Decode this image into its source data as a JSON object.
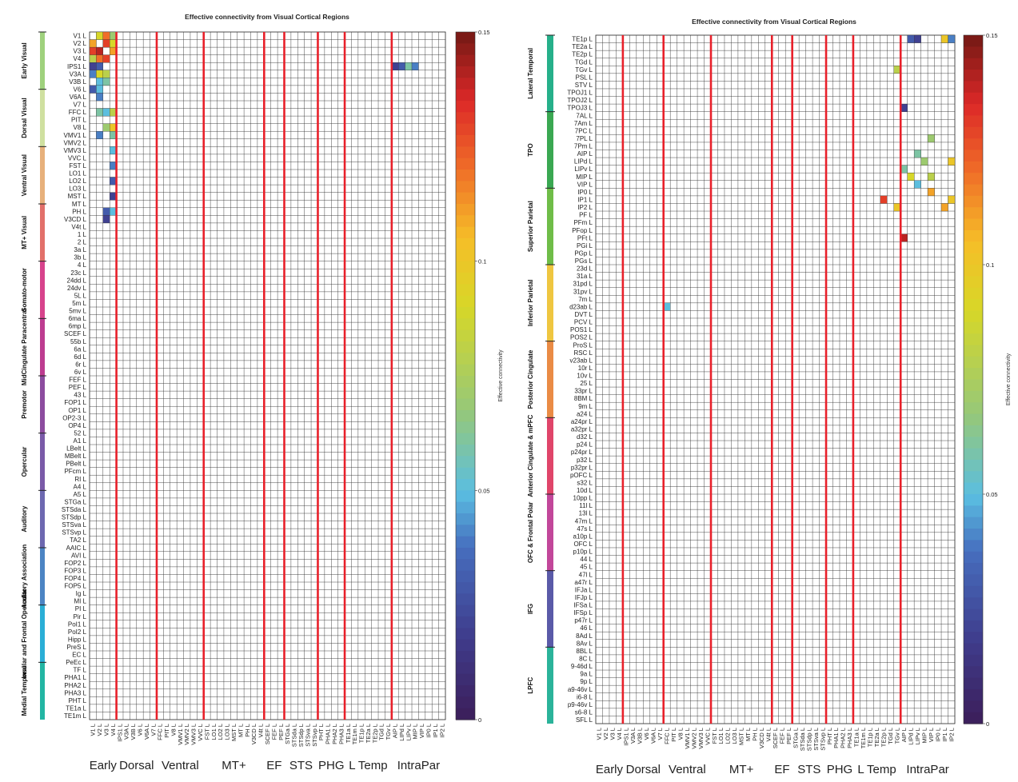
{
  "chart_data": [
    {
      "type": "heatmap",
      "title": "Effective connectivity from Visual Cortical Regions",
      "colorbar": {
        "label": "Effective connectivity",
        "range": [
          0,
          0.15
        ],
        "ticks": [
          "0",
          "0.05",
          "0.1",
          "0.15"
        ]
      },
      "x_groups": [
        "Early",
        "Dorsal",
        "Ventral",
        "MT+",
        "EF",
        "STS",
        "PHG",
        "L Temp",
        "IntraPar"
      ],
      "columns": [
        "V1 L",
        "V2 L",
        "V3 L",
        "V4 L",
        "IPS1 L",
        "V3A L",
        "V3B L",
        "V6 L",
        "V6A L",
        "V7 L",
        "FFC L",
        "PIT L",
        "V8 L",
        "VMV1 L",
        "VMV2 L",
        "VMV3 L",
        "VVC L",
        "FST L",
        "LO1 L",
        "LO2 L",
        "LO3 L",
        "MST L",
        "MT L",
        "PH L",
        "V3CD L",
        "V4t L",
        "SCEF L",
        "FEF L",
        "PEF L",
        "STGa L",
        "STSda L",
        "STSdp L",
        "STSva L",
        "STSvp L",
        "PHT L",
        "PHA1 L",
        "PHA2 L",
        "PHA3 L",
        "TE1a L",
        "TE1m L",
        "TE1p L",
        "TE2a L",
        "TE2p L",
        "TGd L",
        "TGv L",
        "AIP L",
        "LIPd L",
        "LIPv L",
        "MIP L",
        "VIP L",
        "IP0 L",
        "IP1 L",
        "IP2 L"
      ],
      "column_group_boundaries": [
        4,
        10,
        17,
        26,
        29,
        34,
        38,
        45
      ],
      "row_groups": [
        {
          "label": "Early Visual",
          "color": "#9fd17d"
        },
        {
          "label": "Dorsal Visual",
          "color": "#cfe0a0"
        },
        {
          "label": "Ventral Visual",
          "color": "#e7b07b"
        },
        {
          "label": "MT+ Visual",
          "color": "#e2706a"
        },
        {
          "label": "Somato-motor",
          "color": "#d7438c"
        },
        {
          "label": "MidCingulate Paracentral",
          "color": "#bd3c90"
        },
        {
          "label": "Premotor",
          "color": "#8c4c9f"
        },
        {
          "label": "Opercular",
          "color": "#7a5aa8"
        },
        {
          "label": "Auditory",
          "color": "#6d68b0"
        },
        {
          "label": "Auditory Association",
          "color": "#4c84c4"
        },
        {
          "label": "Insular and Frontal Opercular",
          "color": "#2aaed6"
        },
        {
          "label": "Medial Temporal",
          "color": "#22b5a3"
        }
      ],
      "rows": [
        "V1 L",
        "V2 L",
        "V3 L",
        "V4 L",
        "IPS1 L",
        "V3A L",
        "V3B L",
        "V6 L",
        "V6A L",
        "V7 L",
        "FFC L",
        "PIT L",
        "V8 L",
        "VMV1 L",
        "VMV2 L",
        "VMV3 L",
        "VVC L",
        "FST L",
        "LO1 L",
        "LO2 L",
        "LO3 L",
        "MST L",
        "MT L",
        "PH L",
        "V3CD L",
        "V4t L",
        "1 L",
        "2 L",
        "3a L",
        "3b L",
        "4 L",
        "23c L",
        "24dd L",
        "24dv L",
        "5L L",
        "5m L",
        "5mv L",
        "6ma L",
        "6mp L",
        "SCEF L",
        "55b L",
        "6a L",
        "6d L",
        "6r L",
        "6v L",
        "FEF L",
        "PEF L",
        "43 L",
        "FOP1 L",
        "OP1 L",
        "OP2-3 L",
        "OP4 L",
        "52 L",
        "A1 L",
        "LBelt L",
        "MBelt L",
        "PBelt L",
        "PFcm L",
        "RI L",
        "A4 L",
        "A5 L",
        "STGa L",
        "STSda L",
        "STSdp L",
        "STSva L",
        "STSvp L",
        "TA2 L",
        "AAIC L",
        "AVI L",
        "FOP2 L",
        "FOP3 L",
        "FOP4 L",
        "FOP5 L",
        "Ig L",
        "MI L",
        "PI L",
        "Pir L",
        "PoI1 L",
        "PoI2 L",
        "Hipp L",
        "PreS L",
        "EC L",
        "PeEc L",
        "TF L",
        "PHA1 L",
        "PHA2 L",
        "PHA3 L",
        "PHT L",
        "TE1a L",
        "TE1m L"
      ],
      "values_note": "sparse matrix; nonzero cells recorded as [row_index, column_index, value]",
      "cells": [
        [
          0,
          1,
          0.09
        ],
        [
          0,
          2,
          0.12
        ],
        [
          0,
          3,
          0.07
        ],
        [
          1,
          0,
          0.11
        ],
        [
          1,
          2,
          0.13
        ],
        [
          1,
          3,
          0.09
        ],
        [
          2,
          0,
          0.13
        ],
        [
          2,
          1,
          0.14
        ],
        [
          2,
          3,
          0.11
        ],
        [
          3,
          0,
          0.08
        ],
        [
          3,
          1,
          0.12
        ],
        [
          3,
          2,
          0.13
        ],
        [
          4,
          0,
          0.02
        ],
        [
          4,
          1,
          0.03
        ],
        [
          5,
          0,
          0.04
        ],
        [
          5,
          1,
          0.09
        ],
        [
          5,
          2,
          0.08
        ],
        [
          6,
          1,
          0.05
        ],
        [
          6,
          2,
          0.06
        ],
        [
          7,
          0,
          0.03
        ],
        [
          7,
          1,
          0.05
        ],
        [
          8,
          1,
          0.04
        ],
        [
          10,
          1,
          0.06
        ],
        [
          10,
          2,
          0.05
        ],
        [
          10,
          3,
          0.08
        ],
        [
          12,
          2,
          0.07
        ],
        [
          12,
          3,
          0.1
        ],
        [
          13,
          1,
          0.04
        ],
        [
          13,
          3,
          0.06
        ],
        [
          15,
          3,
          0.05
        ],
        [
          17,
          3,
          0.04
        ],
        [
          19,
          3,
          0.03
        ],
        [
          21,
          3,
          0.02
        ],
        [
          23,
          2,
          0.03
        ],
        [
          23,
          3,
          0.05
        ],
        [
          24,
          2,
          0.02
        ],
        [
          4,
          45,
          0.02
        ],
        [
          4,
          46,
          0.03
        ],
        [
          4,
          47,
          0.06
        ],
        [
          4,
          48,
          0.04
        ]
      ]
    },
    {
      "type": "heatmap",
      "title": "Effective connectivity from Visual Cortical Regions",
      "colorbar": {
        "label": "Effective connectivity",
        "range": [
          0,
          0.15
        ],
        "ticks": [
          "0",
          "0.05",
          "0.1",
          "0.15"
        ]
      },
      "x_groups": [
        "Early",
        "Dorsal",
        "Ventral",
        "MT+",
        "EF",
        "STS",
        "PHG",
        "L Temp",
        "IntraPar"
      ],
      "columns": [
        "V1 L",
        "V2 L",
        "V3 L",
        "V4 L",
        "IPS1 L",
        "V3A L",
        "V3B L",
        "V6 L",
        "V6A L",
        "V7 L",
        "FFC L",
        "PIT L",
        "V8 L",
        "VMV1 L",
        "VMV2 L",
        "VMV3 L",
        "VVC L",
        "FST L",
        "LO1 L",
        "LO2 L",
        "LO3 L",
        "MST L",
        "MT L",
        "PH L",
        "V3CD L",
        "V4t L",
        "SCEF L",
        "FEF L",
        "PEF L",
        "STGa L",
        "STSda L",
        "STSdp L",
        "STSva L",
        "STSvp L",
        "PHT L",
        "PHA1 L",
        "PHA2 L",
        "PHA3 L",
        "TE1a L",
        "TE1m L",
        "TE1p L",
        "TE2a L",
        "TE2p L",
        "TGd L",
        "TGv L",
        "AIP L",
        "LIPd L",
        "LIPv L",
        "MIP L",
        "VIP L",
        "IP0 L",
        "IP1 L",
        "IP2 L"
      ],
      "column_group_boundaries": [
        4,
        10,
        17,
        26,
        29,
        34,
        38,
        45
      ],
      "row_groups": [
        {
          "label": "Lateral Temporal",
          "color": "#26b08a"
        },
        {
          "label": "TPO",
          "color": "#3aa852"
        },
        {
          "label": "Superior Parietal",
          "color": "#6fbd48"
        },
        {
          "label": "Inferior Parietal",
          "color": "#efc640"
        },
        {
          "label": "Posterior Cingulate",
          "color": "#ea8b45"
        },
        {
          "label": "Anterior Cingulate & mPFC",
          "color": "#e0456a"
        },
        {
          "label": "OFC & Frontal Polar",
          "color": "#c2479a"
        },
        {
          "label": "IFG",
          "color": "#5a5aa8"
        },
        {
          "label": "LPFC",
          "color": "#2bb39a"
        }
      ],
      "rows": [
        "TE1p L",
        "TE2a L",
        "TE2p L",
        "TGd L",
        "TGv L",
        "PSL L",
        "STV L",
        "TPOJ1 L",
        "TPOJ2 L",
        "TPOJ3 L",
        "7AL L",
        "7Am L",
        "7PC L",
        "7PL L",
        "7Pm L",
        "AIP L",
        "LIPd L",
        "LIPv L",
        "MIP L",
        "VIP L",
        "IP0 L",
        "IP1 L",
        "IP2 L",
        "PF L",
        "PFm L",
        "PFop L",
        "PFt L",
        "PGi L",
        "PGp L",
        "PGs L",
        "23d L",
        "31a L",
        "31pd L",
        "31pv L",
        "7m L",
        "d23ab L",
        "DVT L",
        "PCV L",
        "POS1 L",
        "POS2 L",
        "ProS L",
        "RSC L",
        "v23ab L",
        "10r L",
        "10v L",
        "25 L",
        "33pr L",
        "8BM L",
        "9m L",
        "a24 L",
        "a24pr L",
        "a32pr L",
        "d32 L",
        "p24 L",
        "p24pr L",
        "p32 L",
        "p32pr L",
        "pOFC L",
        "s32 L",
        "10d L",
        "10pp L",
        "11l L",
        "13l L",
        "47m L",
        "47s L",
        "a10p L",
        "OFC L",
        "p10p L",
        "44 L",
        "45 L",
        "47l L",
        "a47r L",
        "IFJa L",
        "IFJp L",
        "IFSa L",
        "IFSp L",
        "p47r L",
        "46 L",
        "8Ad L",
        "8Av L",
        "8BL L",
        "8C L",
        "9-46d L",
        "9a L",
        "9p L",
        "a9-46v L",
        "i6-8 L",
        "p9-46v L",
        "s6-8 L",
        "SFL L"
      ],
      "values_note": "sparse matrix; nonzero cells recorded as [row_index, column_index, value]",
      "cells": [
        [
          0,
          46,
          0.03
        ],
        [
          0,
          47,
          0.02
        ],
        [
          0,
          51,
          0.1
        ],
        [
          0,
          52,
          0.04
        ],
        [
          4,
          44,
          0.08
        ],
        [
          9,
          45,
          0.02
        ],
        [
          13,
          49,
          0.07
        ],
        [
          15,
          47,
          0.06
        ],
        [
          16,
          48,
          0.07
        ],
        [
          16,
          52,
          0.1
        ],
        [
          17,
          45,
          0.06
        ],
        [
          18,
          46,
          0.09
        ],
        [
          18,
          49,
          0.08
        ],
        [
          19,
          47,
          0.05
        ],
        [
          20,
          49,
          0.11
        ],
        [
          21,
          42,
          0.13
        ],
        [
          21,
          52,
          0.1
        ],
        [
          22,
          44,
          0.1
        ],
        [
          22,
          51,
          0.11
        ],
        [
          26,
          45,
          0.14
        ],
        [
          35,
          10,
          0.05
        ]
      ]
    }
  ]
}
